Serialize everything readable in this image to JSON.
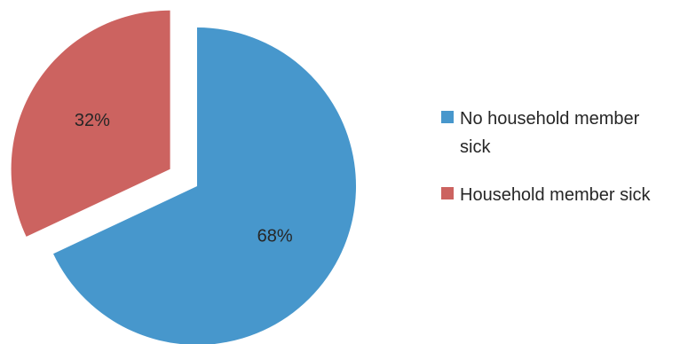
{
  "chart_data": {
    "type": "pie",
    "title": "",
    "slices": [
      {
        "name": "No household member sick",
        "legend_lines": [
          "No household member",
          "sick"
        ],
        "value": 68,
        "label": "68%",
        "color": "#4797CC",
        "exploded": false
      },
      {
        "name": "Household member sick",
        "legend_lines": [
          "Household member sick"
        ],
        "value": 32,
        "label": "32%",
        "color": "#CC6360",
        "exploded": true
      }
    ],
    "legend_placement": "right",
    "start_angle_deg": 0,
    "direction": "clockwise"
  }
}
